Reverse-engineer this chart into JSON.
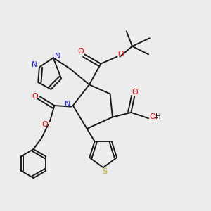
{
  "bg_color": "#ececec",
  "atoms": {
    "C": "#1a1a1a",
    "N": "#2020ff",
    "O": "#ff0000",
    "S": "#c8a800",
    "H": "#1a1a1a"
  },
  "layout": {
    "xlim": [
      0,
      10
    ],
    "ylim": [
      0,
      10
    ],
    "figsize": [
      3.0,
      3.0
    ],
    "dpi": 100
  }
}
